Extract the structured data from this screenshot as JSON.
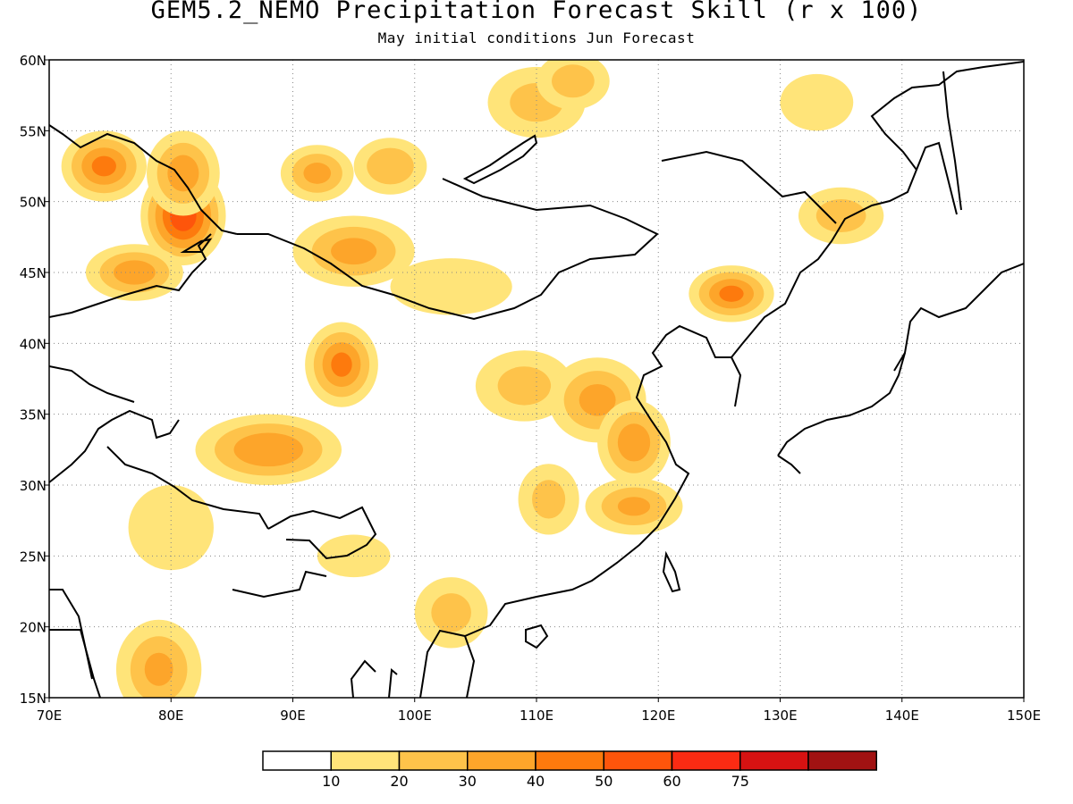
{
  "title": "GEM5.2_NEMO Precipitation Forecast Skill (r x 100)",
  "subtitle": "May initial conditions  Jun Forecast",
  "chart_data": {
    "type": "heatmap",
    "variable": "Precipitation forecast skill, correlation r x 100",
    "lon_range": [
      70,
      150
    ],
    "lat_range": [
      15,
      60
    ],
    "x_ticks": [
      {
        "value": 70,
        "label": "70E"
      },
      {
        "value": 80,
        "label": "80E"
      },
      {
        "value": 90,
        "label": "90E"
      },
      {
        "value": 100,
        "label": "100E"
      },
      {
        "value": 110,
        "label": "110E"
      },
      {
        "value": 120,
        "label": "120E"
      },
      {
        "value": 130,
        "label": "130E"
      },
      {
        "value": 140,
        "label": "140E"
      },
      {
        "value": 150,
        "label": "150E"
      }
    ],
    "y_ticks": [
      {
        "value": 15,
        "label": "15N"
      },
      {
        "value": 20,
        "label": "20N"
      },
      {
        "value": 25,
        "label": "25N"
      },
      {
        "value": 30,
        "label": "30N"
      },
      {
        "value": 35,
        "label": "35N"
      },
      {
        "value": 40,
        "label": "40N"
      },
      {
        "value": 45,
        "label": "45N"
      },
      {
        "value": 50,
        "label": "50N"
      },
      {
        "value": 55,
        "label": "55N"
      },
      {
        "value": 60,
        "label": "60N"
      }
    ],
    "grid": "dotted",
    "colorbar": {
      "placement": "bottom",
      "levels": [
        0,
        10,
        20,
        30,
        40,
        50,
        60,
        75,
        100
      ],
      "labels": [
        "10",
        "20",
        "30",
        "40",
        "50",
        "60",
        "75"
      ],
      "colors": [
        "#ffffff",
        "#ffe479",
        "#fec34a",
        "#fda52a",
        "#fd7a0d",
        "#fe550b",
        "#fb2b13",
        "#d71212",
        "#a11212"
      ]
    },
    "regions": [
      {
        "lon": 74.5,
        "lat": 52.5,
        "r_lon": 3.5,
        "r_lat": 2.5,
        "value": 42
      },
      {
        "lon": 81,
        "lat": 49,
        "r_lon": 3.5,
        "r_lat": 3.5,
        "value": 58
      },
      {
        "lon": 81,
        "lat": 52,
        "r_lon": 3,
        "r_lat": 3,
        "value": 35
      },
      {
        "lon": 77,
        "lat": 45,
        "r_lon": 4,
        "r_lat": 2,
        "value": 35
      },
      {
        "lon": 92,
        "lat": 52,
        "r_lon": 3,
        "r_lat": 2,
        "value": 32
      },
      {
        "lon": 98,
        "lat": 52.5,
        "r_lon": 3,
        "r_lat": 2,
        "value": 28
      },
      {
        "lon": 95,
        "lat": 46.5,
        "r_lon": 5,
        "r_lat": 2.5,
        "value": 32
      },
      {
        "lon": 103,
        "lat": 44,
        "r_lon": 5,
        "r_lat": 2,
        "value": 18
      },
      {
        "lon": 110,
        "lat": 57,
        "r_lon": 4,
        "r_lat": 2.5,
        "value": 22
      },
      {
        "lon": 113,
        "lat": 58.5,
        "r_lon": 3,
        "r_lat": 2,
        "value": 24
      },
      {
        "lon": 135,
        "lat": 49,
        "r_lon": 3.5,
        "r_lat": 2,
        "value": 24
      },
      {
        "lon": 133,
        "lat": 57,
        "r_lon": 3,
        "r_lat": 2,
        "value": 14
      },
      {
        "lon": 126,
        "lat": 43.5,
        "r_lon": 3.5,
        "r_lat": 2,
        "value": 42
      },
      {
        "lon": 94,
        "lat": 38.5,
        "r_lon": 3,
        "r_lat": 3,
        "value": 42
      },
      {
        "lon": 88,
        "lat": 32.5,
        "r_lon": 6,
        "r_lat": 2.5,
        "value": 38
      },
      {
        "lon": 80,
        "lat": 27,
        "r_lon": 3.5,
        "r_lat": 3,
        "value": 18
      },
      {
        "lon": 79,
        "lat": 17,
        "r_lon": 3.5,
        "r_lat": 3.5,
        "value": 30
      },
      {
        "lon": 109,
        "lat": 37,
        "r_lon": 4,
        "r_lat": 2.5,
        "value": 22
      },
      {
        "lon": 115,
        "lat": 36,
        "r_lon": 4,
        "r_lat": 3,
        "value": 32
      },
      {
        "lon": 118,
        "lat": 33,
        "r_lon": 3,
        "r_lat": 3,
        "value": 36
      },
      {
        "lon": 118,
        "lat": 28.5,
        "r_lon": 4,
        "r_lat": 2,
        "value": 30
      },
      {
        "lon": 111,
        "lat": 29,
        "r_lon": 2.5,
        "r_lat": 2.5,
        "value": 22
      },
      {
        "lon": 103,
        "lat": 21,
        "r_lon": 3,
        "r_lat": 2.5,
        "value": 22
      },
      {
        "lon": 95,
        "lat": 25,
        "r_lon": 3,
        "r_lat": 1.5,
        "value": 14
      }
    ]
  }
}
